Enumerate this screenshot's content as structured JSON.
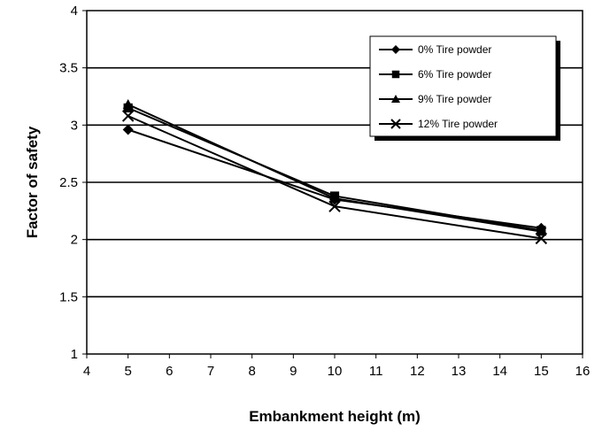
{
  "chart_data": {
    "type": "line",
    "xlabel": "Embankment height (m)",
    "ylabel": "Factor of safety",
    "xlim": [
      4,
      16
    ],
    "ylim": [
      1,
      4
    ],
    "xticks": [
      4,
      5,
      6,
      7,
      8,
      9,
      10,
      11,
      12,
      13,
      14,
      15,
      16
    ],
    "yticks": [
      1,
      1.5,
      2,
      2.5,
      3,
      3.5,
      4
    ],
    "ytick_labels": [
      "1",
      "1.5",
      "2",
      "2.5",
      "3",
      "3.5",
      "4"
    ],
    "grid": "horizontal major gridlines",
    "legend_position": "top-right",
    "x": [
      5,
      10,
      15
    ],
    "series": [
      {
        "name": "0% Tire powder",
        "marker": "diamond",
        "values": [
          2.96,
          2.35,
          2.1
        ]
      },
      {
        "name": "6% Tire powder",
        "marker": "square",
        "values": [
          3.15,
          2.38,
          2.08
        ]
      },
      {
        "name": "9% Tire powder",
        "marker": "triangle",
        "values": [
          3.18,
          2.36,
          2.07
        ]
      },
      {
        "name": "12% Tire powder",
        "marker": "x",
        "values": [
          3.08,
          2.29,
          2.01
        ]
      }
    ]
  }
}
